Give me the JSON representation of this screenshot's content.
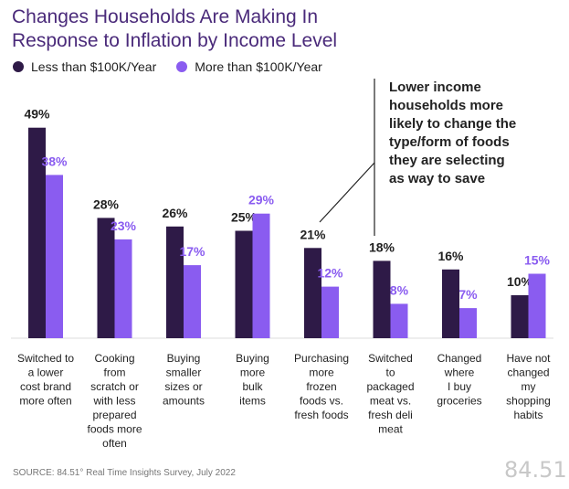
{
  "title_lines": [
    "Changes Households Are Making In",
    "Response to Inflation by Income Level"
  ],
  "legend": [
    {
      "label": "Less than $100K/Year",
      "color": "#2e1a47"
    },
    {
      "label": "More than $100K/Year",
      "color": "#8a5cf0"
    }
  ],
  "annotation_lines": [
    "Lower income",
    "households more",
    "likely to change the",
    "type/form of foods",
    "they are selecting",
    "as way to save"
  ],
  "source": "SOURCE: 84.51° Real Time Insights Survey, July 2022",
  "brand": "84.51°",
  "chart_data": {
    "type": "bar",
    "title": "Changes Households Are Making In Response to Inflation by Income Level",
    "categories": [
      [
        "Switched to",
        "a lower",
        "cost brand",
        "more often"
      ],
      [
        "Cooking",
        "from",
        "scratch or",
        "with less",
        "prepared",
        "foods more",
        "often"
      ],
      [
        "Buying",
        "smaller",
        "sizes or",
        "amounts"
      ],
      [
        "Buying",
        "more",
        "bulk",
        "items"
      ],
      [
        "Purchasing",
        "more",
        "frozen",
        "foods vs.",
        "fresh foods"
      ],
      [
        "Switched",
        "to",
        "packaged",
        "meat vs.",
        "fresh deli",
        "meat"
      ],
      [
        "Changed",
        "where",
        "I buy",
        "groceries"
      ],
      [
        "Have not",
        "changed",
        "my",
        "shopping",
        "habits"
      ]
    ],
    "series": [
      {
        "name": "Less than $100K/Year",
        "values": [
          49,
          28,
          26,
          25,
          21,
          18,
          16,
          10
        ],
        "labels": [
          "49%",
          "28%",
          "26%",
          "25%",
          "21%",
          "18%",
          "16%",
          "10%"
        ],
        "color": "#2e1a47",
        "label_color": "#222222"
      },
      {
        "name": "More than $100K/Year",
        "values": [
          38,
          23,
          17,
          29,
          12,
          8,
          7,
          15
        ],
        "labels": [
          "38%",
          "23%",
          "17%",
          "29%",
          "12%",
          "8%",
          "7%",
          "15%"
        ],
        "color": "#8a5cf0",
        "label_color": "#8a5cf0"
      }
    ],
    "xlabel": "",
    "ylabel": "",
    "ylim": [
      0,
      49
    ],
    "grid": false
  }
}
